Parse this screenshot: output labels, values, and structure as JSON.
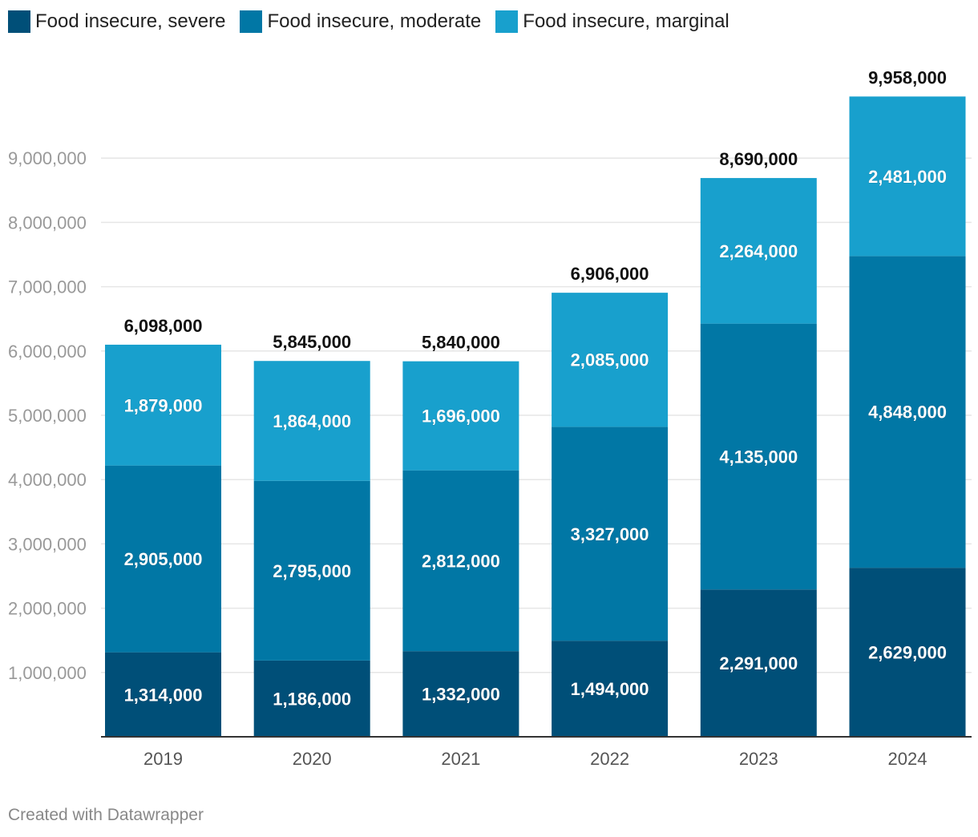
{
  "colors": {
    "severe": "#004f78",
    "moderate": "#0177a5",
    "marginal": "#18a0cd",
    "grid": "#e6e6e6",
    "axis": "#333333",
    "tick_label": "#999999",
    "x_label": "#555555",
    "total_label": "#111111",
    "segment_label": "#ffffff"
  },
  "legend": [
    {
      "key": "severe",
      "label": "Food insecure, severe"
    },
    {
      "key": "moderate",
      "label": "Food insecure, moderate"
    },
    {
      "key": "marginal",
      "label": "Food insecure, marginal"
    }
  ],
  "chart_data": {
    "type": "bar",
    "stacked": true,
    "title": "",
    "xlabel": "",
    "ylabel": "",
    "categories": [
      "2019",
      "2020",
      "2021",
      "2022",
      "2023",
      "2024"
    ],
    "series": [
      {
        "key": "severe",
        "name": "Food insecure, severe",
        "values": [
          1314000,
          1186000,
          1332000,
          1494000,
          2291000,
          2629000
        ],
        "labels": [
          "1,314,000",
          "1,186,000",
          "1,332,000",
          "1,494,000",
          "2,291,000",
          "2,629,000"
        ]
      },
      {
        "key": "moderate",
        "name": "Food insecure, moderate",
        "values": [
          2905000,
          2795000,
          2812000,
          3327000,
          4135000,
          4848000
        ],
        "labels": [
          "2,905,000",
          "2,795,000",
          "2,812,000",
          "3,327,000",
          "4,135,000",
          "4,848,000"
        ]
      },
      {
        "key": "marginal",
        "name": "Food insecure, marginal",
        "values": [
          1879000,
          1864000,
          1696000,
          2085000,
          2264000,
          2481000
        ],
        "labels": [
          "1,879,000",
          "1,864,000",
          "1,696,000",
          "2,085,000",
          "2,264,000",
          "2,481,000"
        ]
      }
    ],
    "totals": [
      6098000,
      5845000,
      5840000,
      6906000,
      8690000,
      9958000
    ],
    "total_labels": [
      "6,098,000",
      "5,845,000",
      "5,840,000",
      "6,906,000",
      "8,690,000",
      "9,958,000"
    ],
    "yticks": [
      1000000,
      2000000,
      3000000,
      4000000,
      5000000,
      6000000,
      7000000,
      8000000,
      9000000
    ],
    "ytick_labels": [
      "1,000,000",
      "2,000,000",
      "3,000,000",
      "4,000,000",
      "5,000,000",
      "6,000,000",
      "7,000,000",
      "8,000,000",
      "9,000,000"
    ],
    "ylim": [
      0,
      10000000
    ],
    "grid": true,
    "legend_position": "top-left"
  },
  "footer": "Created with Datawrapper"
}
